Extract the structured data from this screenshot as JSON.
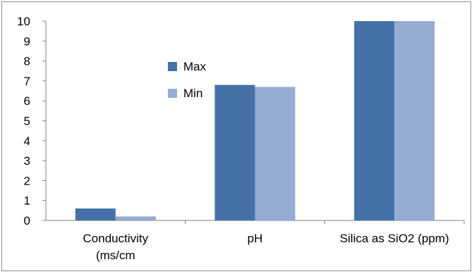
{
  "chart_data": {
    "type": "bar",
    "categories": [
      [
        "Conductivity",
        "(ms/cm"
      ],
      [
        "pH"
      ],
      [
        "Silica as SiO2 (ppm)"
      ]
    ],
    "series": [
      {
        "name": "Max",
        "values": [
          0.6,
          6.8,
          10.0
        ],
        "color": "#4472a8"
      },
      {
        "name": "Min",
        "values": [
          0.2,
          6.7,
          10.0
        ],
        "color": "#95abd4"
      }
    ],
    "ylim": [
      0,
      10
    ],
    "yticks": [
      0,
      1,
      2,
      3,
      4,
      5,
      6,
      7,
      8,
      9,
      10
    ],
    "grid": false,
    "legend_position": "upper-middle",
    "title": "",
    "xlabel": "",
    "ylabel": ""
  }
}
